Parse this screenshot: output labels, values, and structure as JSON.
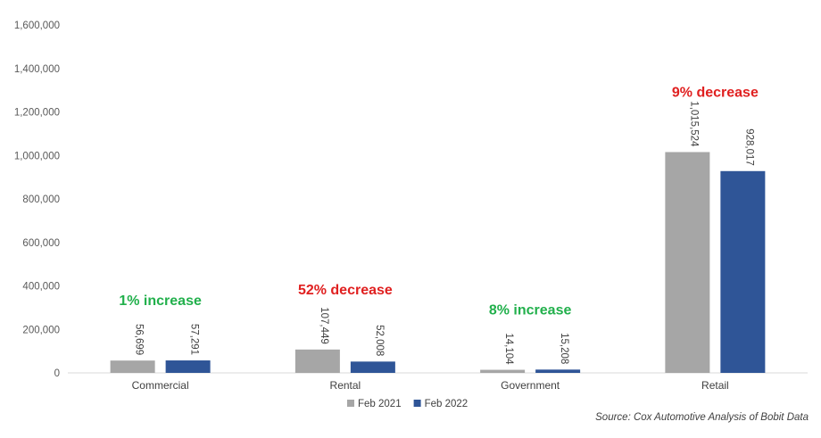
{
  "chart_data": {
    "type": "bar",
    "categories": [
      "Commercial",
      "Rental",
      "Government",
      "Retail"
    ],
    "series": [
      {
        "name": "Feb 2021",
        "values": [
          56699,
          107449,
          14104,
          1015524
        ],
        "labels": [
          "56,699",
          "107,449",
          "14,104",
          "1,015,524"
        ],
        "color": "#a6a6a6"
      },
      {
        "name": "Feb 2022",
        "values": [
          57291,
          52008,
          15208,
          928017
        ],
        "labels": [
          "57,291",
          "52,008",
          "15,208",
          "928,017"
        ],
        "color": "#2f5597"
      }
    ],
    "yticks": [
      "0",
      "200,000",
      "400,000",
      "600,000",
      "800,000",
      "1,000,000",
      "1,200,000",
      "1,400,000",
      "1,600,000"
    ],
    "ylim": [
      0,
      1600000
    ],
    "grid": false,
    "legend_position": "bottom",
    "annotations": [
      {
        "text": "1% increase",
        "category": "Commercial",
        "color": "#22b04c"
      },
      {
        "text": "52% decrease",
        "category": "Rental",
        "color": "#e02020"
      },
      {
        "text": "8% increase",
        "category": "Government",
        "color": "#22b04c"
      },
      {
        "text": "9% decrease",
        "category": "Retail",
        "color": "#e02020"
      }
    ]
  },
  "source": "Source: Cox Automotive Analysis of Bobit Data"
}
